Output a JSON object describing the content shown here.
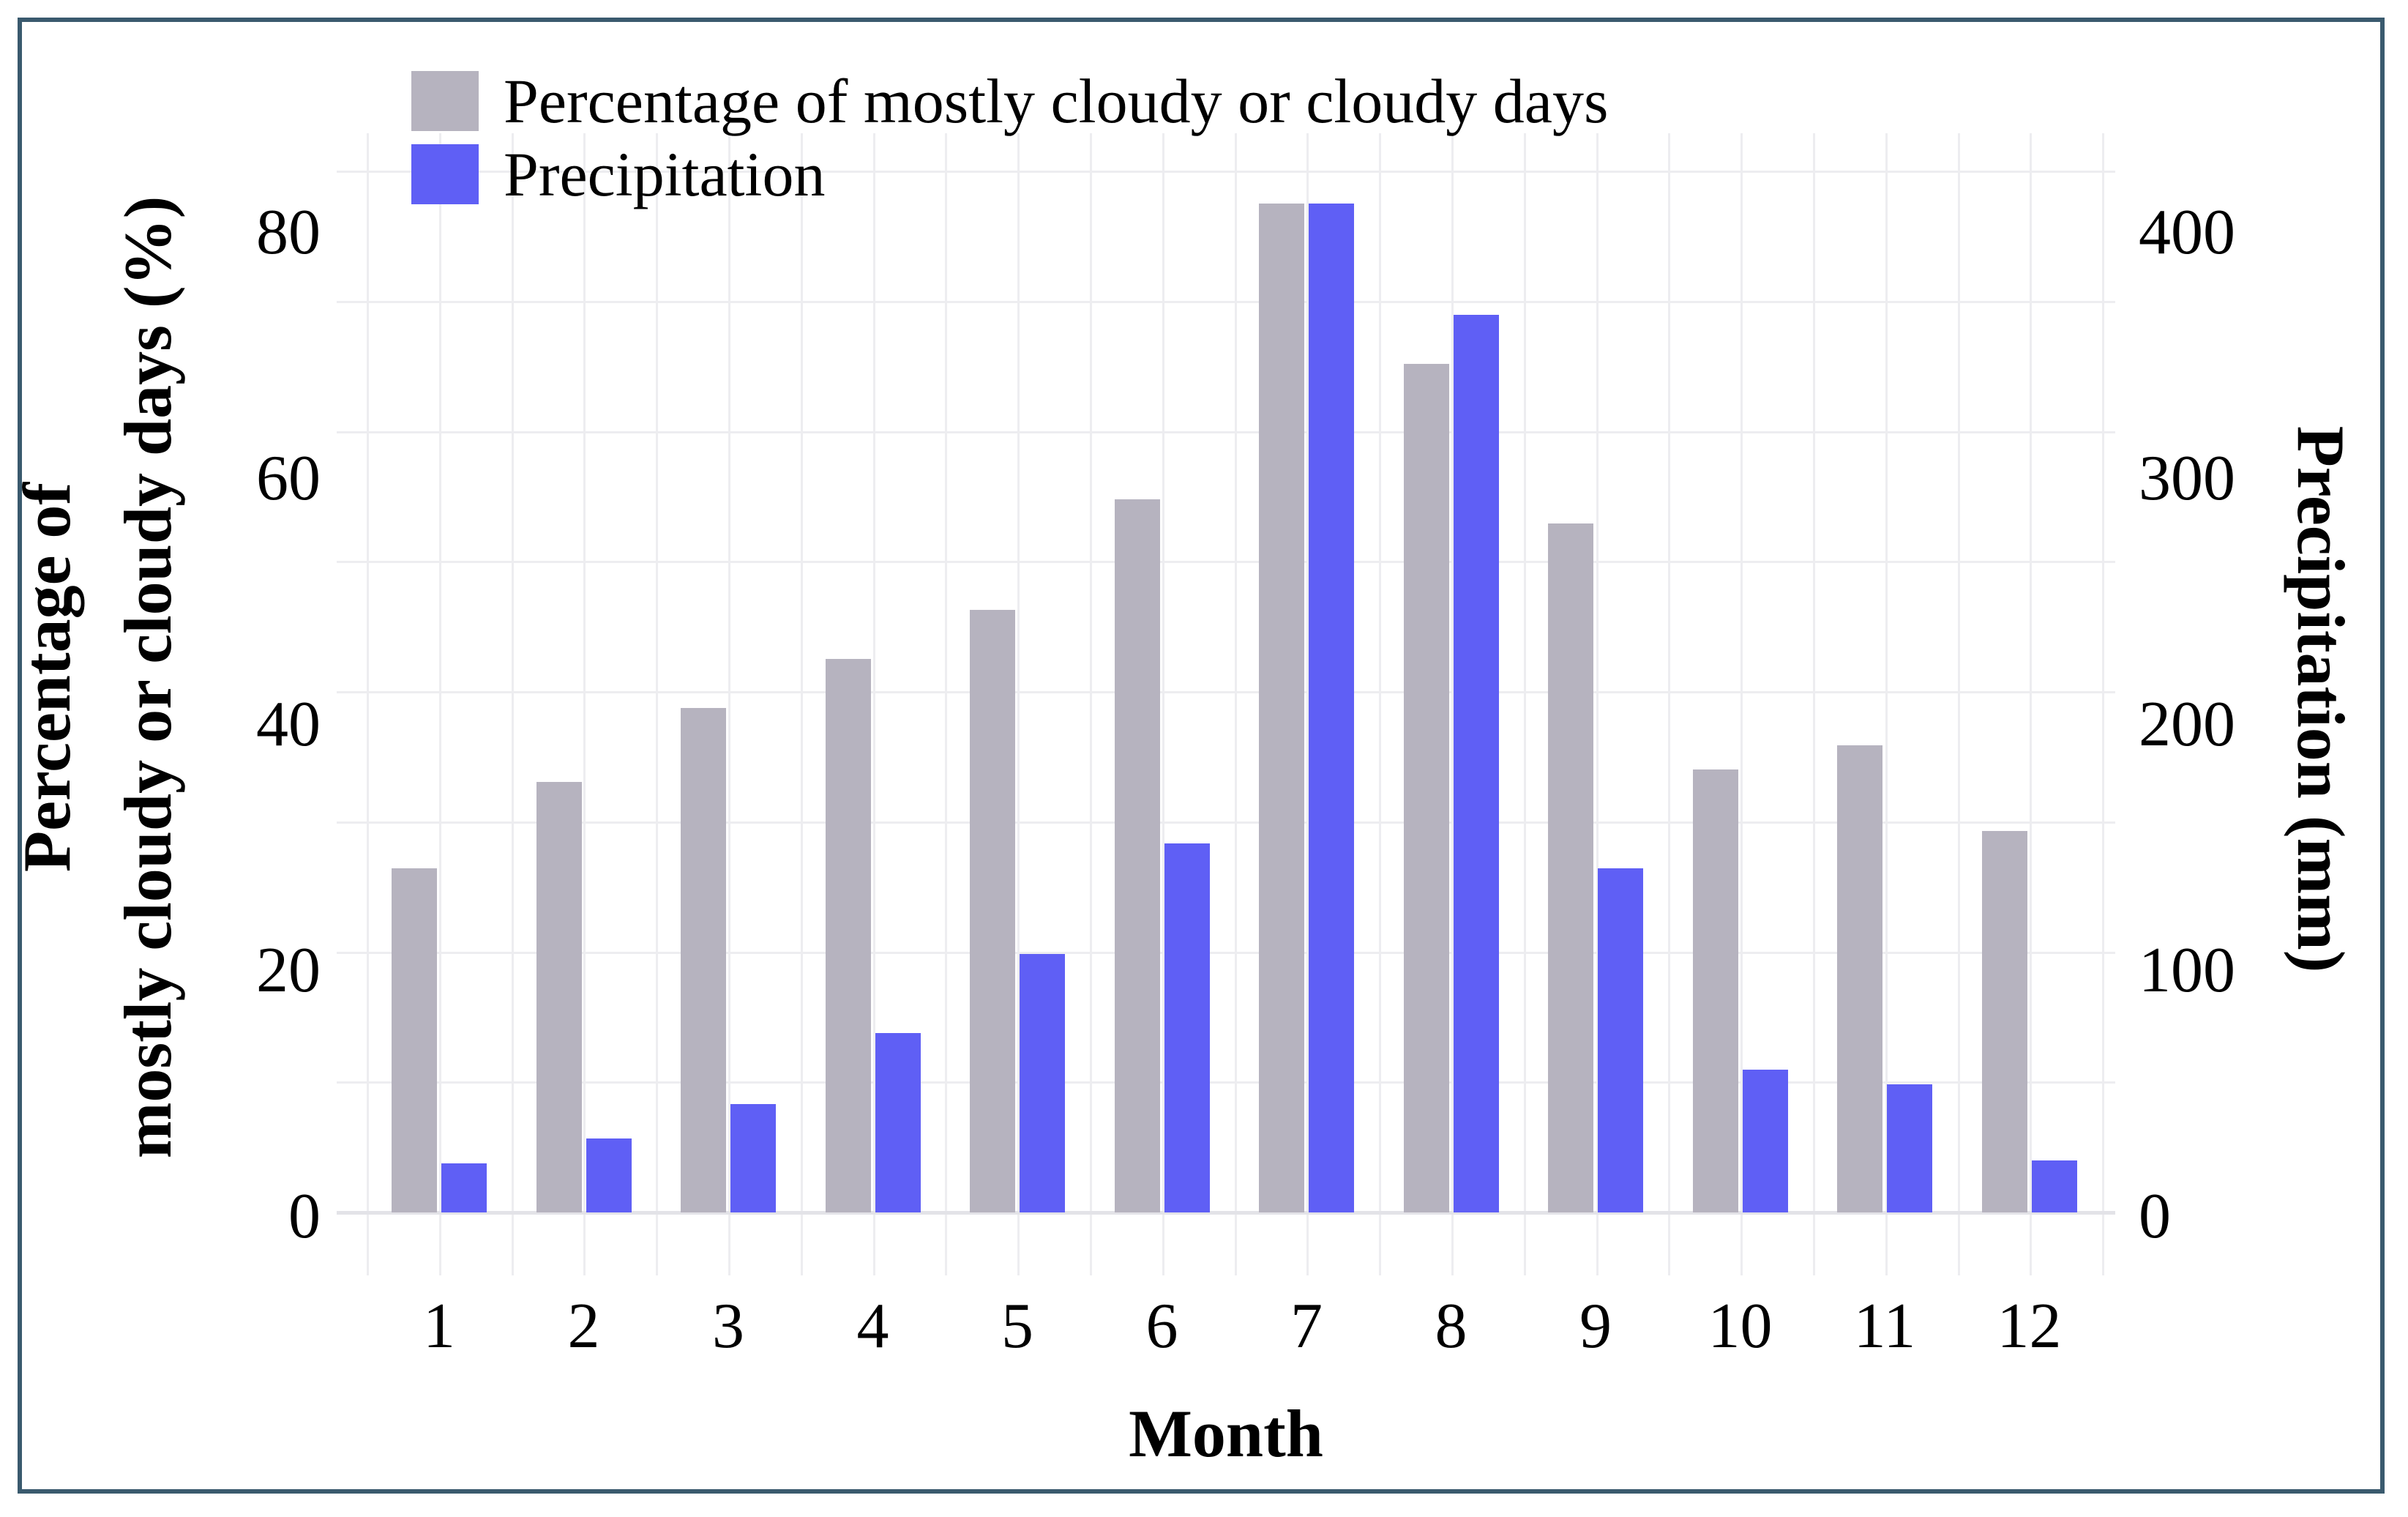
{
  "frame": {
    "border_color": "#3a5a6e"
  },
  "legend": {
    "items": [
      {
        "label": "Percentage of mostly cloudy or cloudy days",
        "color": "#b6b3bf"
      },
      {
        "label": "Precipitation",
        "color": "#5f5ff5"
      }
    ]
  },
  "chart_data": {
    "type": "bar",
    "xlabel": "Month",
    "categories": [
      1,
      2,
      3,
      4,
      5,
      6,
      7,
      8,
      9,
      10,
      11,
      12
    ],
    "series": [
      {
        "name": "Percentage of mostly cloudy or cloudy days",
        "axis": "left",
        "unit": "%",
        "color": "#b6b3bf",
        "values": [
          28,
          35,
          41,
          45,
          49,
          58,
          82,
          69,
          56,
          36,
          38,
          31
        ]
      },
      {
        "name": "Precipitation",
        "axis": "right",
        "unit": "mm",
        "color": "#5f5ff5",
        "values": [
          20,
          30,
          44,
          73,
          105,
          150,
          410,
          365,
          140,
          58,
          52,
          21
        ]
      }
    ],
    "left_axis": {
      "title": "Percentage of mostly cloudy or cloudy days (%)",
      "title_line1": "Percentage of",
      "title_line2": "mostly cloudy or cloudy days (%)",
      "ticks": [
        0,
        20,
        40,
        60,
        80
      ],
      "range": [
        0,
        80
      ]
    },
    "right_axis": {
      "title": "Precipitation (mm)",
      "ticks": [
        0,
        100,
        200,
        300,
        400
      ],
      "range": [
        0,
        400
      ]
    },
    "grid": true,
    "legend_position": "top-left"
  }
}
